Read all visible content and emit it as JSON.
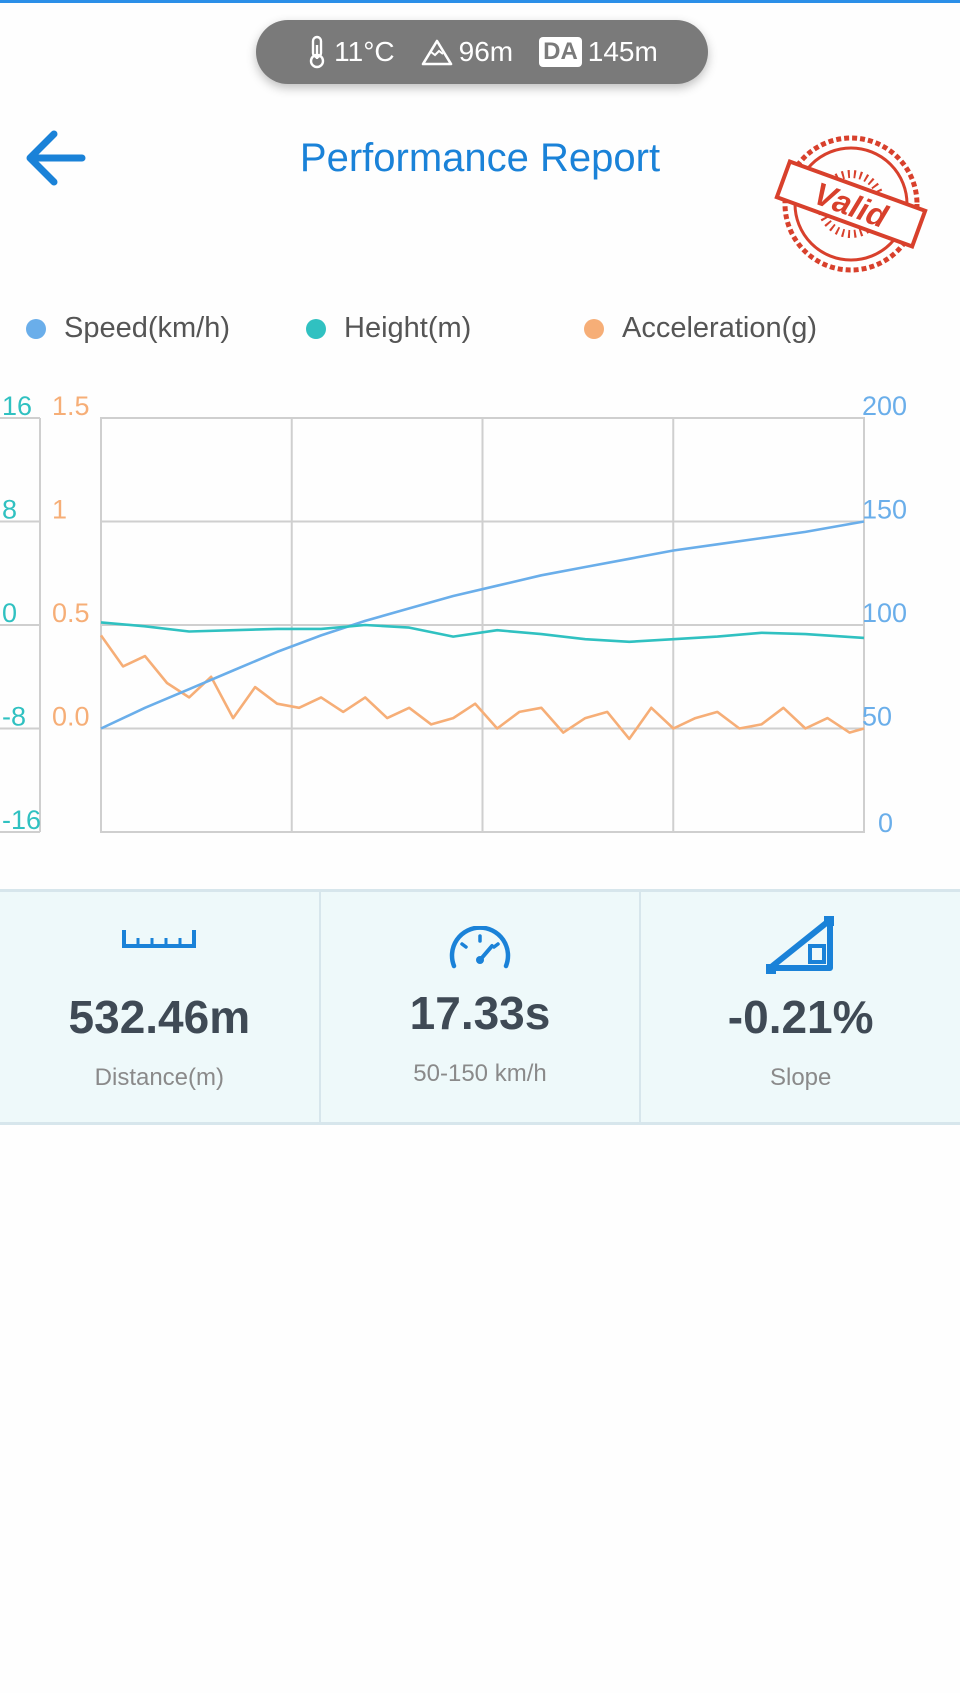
{
  "status_bar": {
    "temperature": "11°C",
    "altitude": "96m",
    "da_badge": "DA",
    "density_altitude": "145m",
    "icons": [
      "thermometer-icon",
      "mountain-icon",
      "da-icon"
    ]
  },
  "header": {
    "title": "Performance Report",
    "stamp_text": "Valid",
    "back_icon": "arrow-left-icon"
  },
  "colors": {
    "accent": "#1a82d8",
    "speed": "#6aaeea",
    "height": "#30c1c1",
    "acceleration": "#f6ae77",
    "grid": "#cfcfcf",
    "stamp": "#d8402c",
    "stats_bg": "#eef9fa"
  },
  "chart_data": {
    "type": "line",
    "legend": [
      {
        "label": "Speed(km/h)",
        "color": "#6aaeea"
      },
      {
        "label": "Height(m)",
        "color": "#30c1c1"
      },
      {
        "label": "Acceleration(g)",
        "color": "#f6ae77"
      }
    ],
    "legend_position": "top",
    "grid": true,
    "axes": {
      "left_height": {
        "ticks": [
          "16",
          "8",
          "0",
          "-8",
          "-16"
        ],
        "ylim": [
          -16,
          16
        ]
      },
      "left_acceleration": {
        "ticks": [
          "1.5",
          "1",
          "0.5",
          "0.0"
        ],
        "ylim": [
          -0.5,
          1.5
        ]
      },
      "right_speed": {
        "ticks": [
          "200",
          "150",
          "100",
          "50",
          "0"
        ],
        "ylim": [
          0,
          200
        ]
      }
    },
    "xlim": [
      0,
      17.33
    ],
    "series": [
      {
        "name": "Speed(km/h)",
        "axis": "right_speed",
        "x": [
          0,
          1,
          2,
          3,
          4,
          5,
          6,
          7,
          8,
          9,
          10,
          11,
          12,
          13,
          14,
          15,
          16,
          17.33
        ],
        "values": [
          50,
          60,
          69,
          78,
          87,
          95,
          102,
          108,
          114,
          119,
          124,
          128,
          132,
          136,
          139,
          142,
          145,
          150
        ]
      },
      {
        "name": "Height(m)",
        "axis": "left_height",
        "x": [
          0,
          1,
          2,
          3,
          4,
          5,
          6,
          7,
          8,
          9,
          10,
          11,
          12,
          13,
          14,
          15,
          16,
          17.33
        ],
        "values": [
          0.2,
          -0.1,
          -0.5,
          -0.4,
          -0.3,
          -0.3,
          0,
          -0.2,
          -0.9,
          -0.4,
          -0.7,
          -1.1,
          -1.3,
          -1.1,
          -0.9,
          -0.6,
          -0.7,
          -1.0
        ]
      },
      {
        "name": "Acceleration(g)",
        "axis": "left_acceleration",
        "x": [
          0,
          0.5,
          1,
          1.5,
          2,
          2.5,
          3,
          3.5,
          4,
          4.5,
          5,
          5.5,
          6,
          6.5,
          7,
          7.5,
          8,
          8.5,
          9,
          9.5,
          10,
          10.5,
          11,
          11.5,
          12,
          12.5,
          13,
          13.5,
          14,
          14.5,
          15,
          15.5,
          16,
          16.5,
          17,
          17.33
        ],
        "values": [
          0.45,
          0.3,
          0.35,
          0.22,
          0.15,
          0.25,
          0.05,
          0.2,
          0.12,
          0.1,
          0.15,
          0.08,
          0.15,
          0.05,
          0.1,
          0.02,
          0.05,
          0.12,
          0.0,
          0.08,
          0.1,
          -0.02,
          0.05,
          0.08,
          -0.05,
          0.1,
          0.0,
          0.05,
          0.08,
          0.0,
          0.02,
          0.1,
          0.0,
          0.05,
          -0.02,
          0.0
        ]
      }
    ]
  },
  "stats": [
    {
      "value": "532.46m",
      "label": "Distance(m)",
      "icon": "ruler-icon"
    },
    {
      "value": "17.33s",
      "label": "50-150 km/h",
      "icon": "speedometer-icon"
    },
    {
      "value": "-0.21%",
      "label": "Slope",
      "icon": "slope-icon"
    }
  ]
}
